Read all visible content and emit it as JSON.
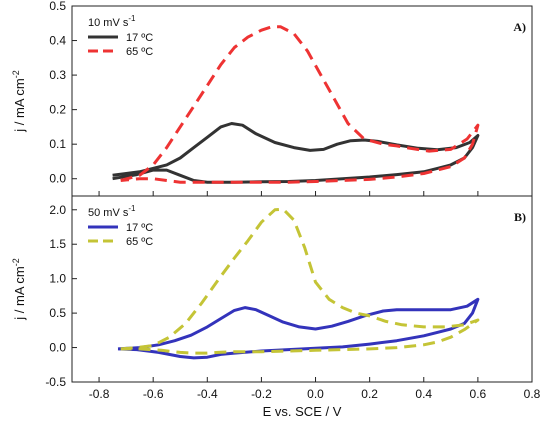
{
  "chart_data": [
    {
      "type": "line",
      "panel_label": "A)",
      "xlabel": "",
      "ylabel": "j / mA cm",
      "ylabel_sup": "-2",
      "xlim": [
        -0.9,
        0.8
      ],
      "ylim": [
        -0.05,
        0.5
      ],
      "yticks": [
        0.0,
        0.1,
        0.2,
        0.3,
        0.4,
        0.5
      ],
      "yticklabels": [
        "0.0",
        "0.1",
        "0.2",
        "0.3",
        "0.4",
        "0.5"
      ],
      "xticks": [
        -0.8,
        -0.6,
        -0.4,
        -0.2,
        0.0,
        0.2,
        0.4,
        0.6,
        0.8
      ],
      "show_x_ticklabels": false,
      "legend": {
        "title": "10 mV s",
        "title_sup": "-1",
        "placement": "top-left"
      },
      "series": [
        {
          "name": "17 ºC",
          "color": "#333333",
          "style": "solid",
          "x": [
            -0.75,
            -0.65,
            -0.55,
            -0.5,
            -0.45,
            -0.4,
            -0.35,
            -0.31,
            -0.27,
            -0.22,
            -0.15,
            -0.08,
            -0.02,
            0.03,
            0.08,
            0.13,
            0.18,
            0.23,
            0.3,
            0.38,
            0.45,
            0.52,
            0.57,
            0.6,
            0.58,
            0.55,
            0.5,
            0.45,
            0.4,
            0.3,
            0.2,
            0.1,
            0.0,
            -0.1,
            -0.2,
            -0.3,
            -0.4,
            -0.45,
            -0.5,
            -0.55,
            -0.6,
            -0.66,
            -0.75
          ],
          "y": [
            0.01,
            0.02,
            0.04,
            0.06,
            0.09,
            0.12,
            0.15,
            0.16,
            0.155,
            0.13,
            0.105,
            0.09,
            0.082,
            0.085,
            0.1,
            0.11,
            0.112,
            0.108,
            0.098,
            0.088,
            0.084,
            0.09,
            0.105,
            0.125,
            0.09,
            0.06,
            0.04,
            0.03,
            0.02,
            0.012,
            0.005,
            0.0,
            -0.005,
            -0.008,
            -0.009,
            -0.01,
            -0.01,
            -0.005,
            0.01,
            0.025,
            0.025,
            0.012,
            0.0
          ]
        },
        {
          "name": "65 ºC",
          "color": "#ee3333",
          "style": "dashed",
          "x": [
            -0.72,
            -0.65,
            -0.6,
            -0.55,
            -0.5,
            -0.45,
            -0.4,
            -0.35,
            -0.3,
            -0.25,
            -0.2,
            -0.16,
            -0.13,
            -0.08,
            -0.03,
            0.02,
            0.07,
            0.12,
            0.18,
            0.25,
            0.3,
            0.35,
            0.42,
            0.5,
            0.56,
            0.6,
            0.58,
            0.55,
            0.5,
            0.4,
            0.3,
            0.2,
            0.1,
            0.0,
            -0.1,
            -0.2,
            -0.3,
            -0.4,
            -0.5,
            -0.55,
            -0.6,
            -0.65,
            -0.72
          ],
          "y": [
            -0.005,
            0.01,
            0.04,
            0.09,
            0.15,
            0.21,
            0.27,
            0.33,
            0.38,
            0.41,
            0.43,
            0.44,
            0.44,
            0.42,
            0.37,
            0.3,
            0.23,
            0.16,
            0.115,
            0.1,
            0.095,
            0.088,
            0.08,
            0.085,
            0.115,
            0.155,
            0.1,
            0.06,
            0.035,
            0.015,
            0.005,
            -0.002,
            -0.005,
            -0.008,
            -0.01,
            -0.01,
            -0.01,
            -0.01,
            -0.01,
            -0.005,
            0.0,
            0.0,
            -0.005
          ]
        }
      ]
    },
    {
      "type": "line",
      "panel_label": "B)",
      "xlabel": "E vs. SCE / V",
      "ylabel": "j / mA cm",
      "ylabel_sup": "-2",
      "xlim": [
        -0.9,
        0.8
      ],
      "ylim": [
        -0.5,
        2.2
      ],
      "yticks": [
        -0.5,
        0.0,
        0.5,
        1.0,
        1.5,
        2.0
      ],
      "yticklabels": [
        "-0.5",
        "0.0",
        "0.5",
        "1.0",
        "1.5",
        "2.0"
      ],
      "xticks": [
        -0.8,
        -0.6,
        -0.4,
        -0.2,
        0.0,
        0.2,
        0.4,
        0.6,
        0.8
      ],
      "xticklabels": [
        "-0.8",
        "-0.6",
        "-0.4",
        "-0.2",
        "0.0",
        "0.2",
        "0.4",
        "0.6",
        "0.8"
      ],
      "legend": {
        "title": "50 mV s",
        "title_sup": "-1",
        "placement": "top-left"
      },
      "series": [
        {
          "name": "17 ºC",
          "color": "#3333bb",
          "style": "solid",
          "x": [
            -0.73,
            -0.65,
            -0.58,
            -0.52,
            -0.46,
            -0.4,
            -0.35,
            -0.3,
            -0.26,
            -0.22,
            -0.17,
            -0.12,
            -0.06,
            0.0,
            0.06,
            0.12,
            0.18,
            0.25,
            0.3,
            0.35,
            0.42,
            0.5,
            0.56,
            0.6,
            0.58,
            0.55,
            0.5,
            0.45,
            0.4,
            0.3,
            0.2,
            0.1,
            0.0,
            -0.1,
            -0.2,
            -0.3,
            -0.35,
            -0.4,
            -0.45,
            -0.5,
            -0.58,
            -0.66,
            -0.73
          ],
          "y": [
            -0.02,
            0.0,
            0.04,
            0.1,
            0.18,
            0.3,
            0.42,
            0.54,
            0.58,
            0.55,
            0.46,
            0.37,
            0.3,
            0.27,
            0.31,
            0.38,
            0.46,
            0.53,
            0.55,
            0.55,
            0.55,
            0.55,
            0.6,
            0.7,
            0.5,
            0.35,
            0.27,
            0.22,
            0.17,
            0.1,
            0.05,
            0.01,
            -0.01,
            -0.03,
            -0.05,
            -0.08,
            -0.1,
            -0.14,
            -0.15,
            -0.13,
            -0.07,
            -0.03,
            -0.02
          ]
        },
        {
          "name": "65 ºC",
          "color": "#c4c436",
          "style": "dashed",
          "x": [
            -0.72,
            -0.66,
            -0.6,
            -0.54,
            -0.48,
            -0.42,
            -0.36,
            -0.3,
            -0.25,
            -0.2,
            -0.15,
            -0.12,
            -0.08,
            -0.04,
            0.0,
            0.05,
            0.1,
            0.15,
            0.2,
            0.26,
            0.32,
            0.4,
            0.48,
            0.55,
            0.6,
            0.55,
            0.5,
            0.45,
            0.4,
            0.3,
            0.2,
            0.1,
            0.0,
            -0.1,
            -0.2,
            -0.3,
            -0.36,
            -0.4,
            -0.45,
            -0.5,
            -0.57,
            -0.65,
            -0.72
          ],
          "y": [
            -0.02,
            0.0,
            0.03,
            0.15,
            0.35,
            0.65,
            0.98,
            1.3,
            1.55,
            1.82,
            2.0,
            2.01,
            1.85,
            1.45,
            0.95,
            0.7,
            0.58,
            0.5,
            0.46,
            0.38,
            0.33,
            0.3,
            0.3,
            0.33,
            0.4,
            0.26,
            0.15,
            0.08,
            0.04,
            0.0,
            -0.02,
            -0.03,
            -0.04,
            -0.05,
            -0.06,
            -0.06,
            -0.07,
            -0.08,
            -0.08,
            -0.07,
            -0.04,
            -0.02,
            -0.02
          ]
        }
      ]
    }
  ]
}
